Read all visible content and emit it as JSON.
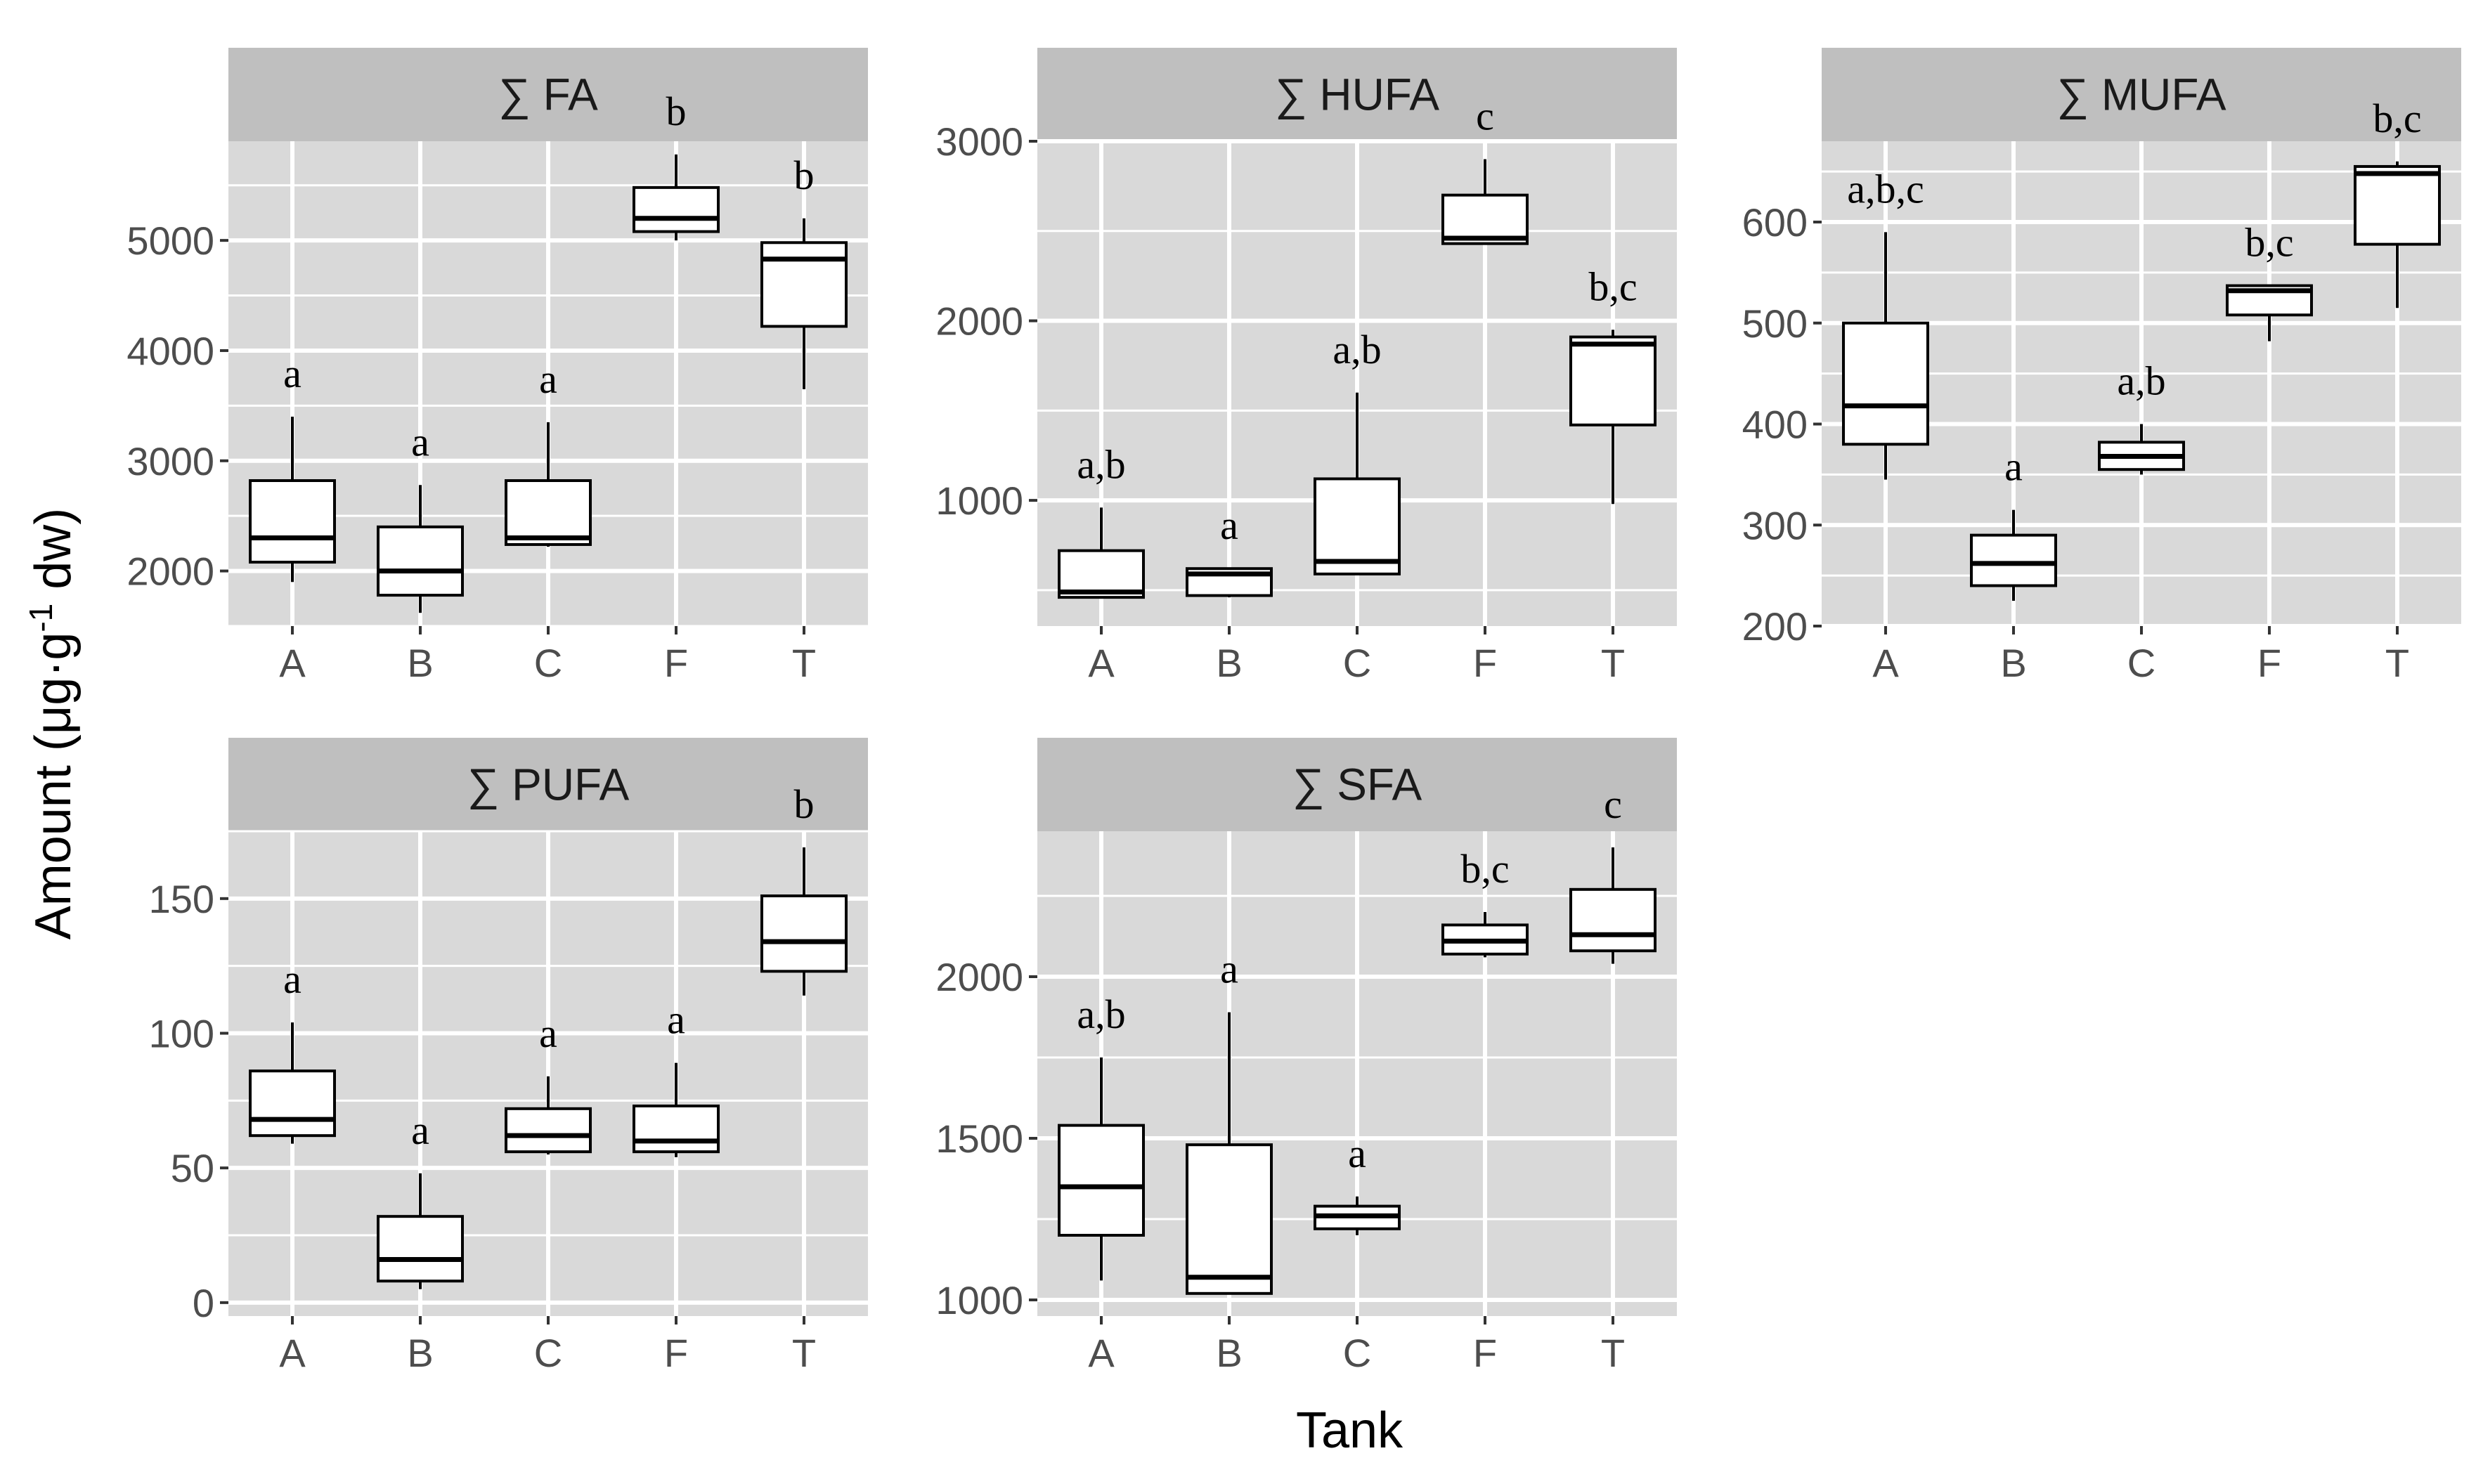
{
  "chart_data": {
    "type": "boxplot",
    "x_axis_label": "Tank",
    "y_axis_label_parts": {
      "main": "Amount  (μg·g",
      "sup": "-1",
      "tail": " dw)"
    },
    "categories": [
      "A",
      "B",
      "C",
      "F",
      "T"
    ],
    "panels": [
      {
        "title": "∑ FA",
        "ylim": [
          1500,
          5900
        ],
        "yticks": [
          2000,
          3000,
          4000,
          5000
        ],
        "boxes": [
          {
            "category": "A",
            "min": 1900,
            "q1": 2080,
            "median": 2300,
            "q3": 2820,
            "max": 3400,
            "letters": "a"
          },
          {
            "category": "B",
            "min": 1620,
            "q1": 1780,
            "median": 2000,
            "q3": 2400,
            "max": 2780,
            "letters": "a"
          },
          {
            "category": "C",
            "min": 2220,
            "q1": 2240,
            "median": 2300,
            "q3": 2820,
            "max": 3350,
            "letters": "a"
          },
          {
            "category": "F",
            "min": 5000,
            "q1": 5080,
            "median": 5200,
            "q3": 5480,
            "max": 5780,
            "letters": "b"
          },
          {
            "category": "T",
            "min": 3650,
            "q1": 4220,
            "median": 4830,
            "q3": 4980,
            "max": 5200,
            "letters": "b"
          }
        ]
      },
      {
        "title": "∑ HUFA",
        "ylim": [
          300,
          3000
        ],
        "yticks": [
          1000,
          2000,
          3000
        ],
        "boxes": [
          {
            "category": "A",
            "min": 460,
            "q1": 460,
            "median": 490,
            "q3": 720,
            "max": 960,
            "letters": "a,b"
          },
          {
            "category": "B",
            "min": 460,
            "q1": 470,
            "median": 590,
            "q3": 620,
            "max": 620,
            "letters": "a"
          },
          {
            "category": "C",
            "min": 590,
            "q1": 590,
            "median": 660,
            "q3": 1120,
            "max": 1600,
            "letters": "a,b"
          },
          {
            "category": "F",
            "min": 2430,
            "q1": 2430,
            "median": 2460,
            "q3": 2700,
            "max": 2900,
            "letters": "c"
          },
          {
            "category": "T",
            "min": 980,
            "q1": 1420,
            "median": 1870,
            "q3": 1910,
            "max": 1950,
            "letters": "b,c"
          }
        ]
      },
      {
        "title": "∑ MUFA",
        "ylim": [
          200,
          680
        ],
        "yticks": [
          200,
          300,
          400,
          500,
          600
        ],
        "boxes": [
          {
            "category": "A",
            "min": 345,
            "q1": 380,
            "median": 418,
            "q3": 500,
            "max": 590,
            "letters": "a,b,c"
          },
          {
            "category": "B",
            "min": 225,
            "q1": 240,
            "median": 262,
            "q3": 290,
            "max": 315,
            "letters": "a"
          },
          {
            "category": "C",
            "min": 350,
            "q1": 355,
            "median": 368,
            "q3": 382,
            "max": 400,
            "letters": "a,b"
          },
          {
            "category": "F",
            "min": 482,
            "q1": 508,
            "median": 532,
            "q3": 537,
            "max": 537,
            "letters": "b,c"
          },
          {
            "category": "T",
            "min": 515,
            "q1": 578,
            "median": 648,
            "q3": 655,
            "max": 660,
            "letters": "b,c"
          }
        ]
      },
      {
        "title": "∑ PUFA",
        "ylim": [
          -5,
          175
        ],
        "yticks": [
          0,
          50,
          100,
          150
        ],
        "boxes": [
          {
            "category": "A",
            "min": 59,
            "q1": 62,
            "median": 68,
            "q3": 86,
            "max": 104,
            "letters": "a"
          },
          {
            "category": "B",
            "min": 5,
            "q1": 8,
            "median": 16,
            "q3": 32,
            "max": 48,
            "letters": "a"
          },
          {
            "category": "C",
            "min": 55,
            "q1": 56,
            "median": 62,
            "q3": 72,
            "max": 84,
            "letters": "a"
          },
          {
            "category": "F",
            "min": 54,
            "q1": 56,
            "median": 60,
            "q3": 73,
            "max": 89,
            "letters": "a"
          },
          {
            "category": "T",
            "min": 114,
            "q1": 123,
            "median": 134,
            "q3": 151,
            "max": 169,
            "letters": "b"
          }
        ]
      },
      {
        "title": "∑ SFA",
        "ylim": [
          950,
          2450
        ],
        "yticks": [
          1000,
          1500,
          2000
        ],
        "boxes": [
          {
            "category": "A",
            "min": 1060,
            "q1": 1200,
            "median": 1350,
            "q3": 1540,
            "max": 1750,
            "letters": "a,b"
          },
          {
            "category": "B",
            "min": 1020,
            "q1": 1020,
            "median": 1070,
            "q3": 1480,
            "max": 1890,
            "letters": "a"
          },
          {
            "category": "C",
            "min": 1200,
            "q1": 1220,
            "median": 1260,
            "q3": 1290,
            "max": 1320,
            "letters": "a"
          },
          {
            "category": "F",
            "min": 2060,
            "q1": 2070,
            "median": 2110,
            "q3": 2160,
            "max": 2200,
            "letters": "b,c"
          },
          {
            "category": "T",
            "min": 2040,
            "q1": 2080,
            "median": 2130,
            "q3": 2270,
            "max": 2400,
            "letters": "c"
          }
        ]
      }
    ]
  },
  "colors": {
    "panel_background": "#d9d9d9",
    "strip_background": "#bfbfbf",
    "grid": "#ffffff",
    "box_fill": "#ffffff",
    "box_stroke": "#000000"
  }
}
